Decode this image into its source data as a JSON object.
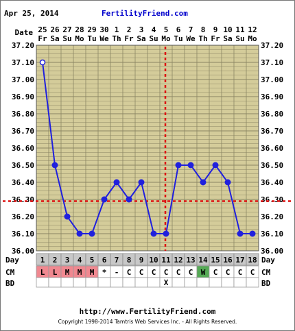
{
  "header": {
    "date": "Apr 25, 2014",
    "site": "FertilityFriend.com"
  },
  "footer": {
    "url": "http://www.FertilityFriend.com",
    "copyright": "Copyright 1998-2014 Tamtris Web Services Inc. - All Rights Reserved."
  },
  "labels": {
    "date_row": "Date",
    "day_row": "Day",
    "cm_row": "CM",
    "bd_row": "BD"
  },
  "colors": {
    "panel": "#d4cc9a",
    "grid": "#8a8462",
    "line": "#2020dd",
    "coverline": "#dd1111",
    "cm_red": "#f08890",
    "cm_green": "#55aa55",
    "row_gray": "#c8c8c8",
    "title_blue": "#0000cc"
  },
  "chart_data": {
    "type": "line",
    "ylim": [
      36.0,
      37.2
    ],
    "yticks": [
      "37.20",
      "37.10",
      "37.00",
      "36.90",
      "36.80",
      "36.70",
      "36.60",
      "36.50",
      "36.40",
      "36.30",
      "36.20",
      "36.10",
      "36.00"
    ],
    "dates": [
      "25",
      "26",
      "27",
      "28",
      "29",
      "30",
      "1",
      "2",
      "3",
      "4",
      "5",
      "6",
      "7",
      "8",
      "9",
      "10",
      "11",
      "12"
    ],
    "weekdays": [
      "Fr",
      "Sa",
      "Su",
      "Mo",
      "Tu",
      "We",
      "Th",
      "Fr",
      "Sa",
      "Su",
      "Mo",
      "Tu",
      "We",
      "Th",
      "Fr",
      "Sa",
      "Su",
      "Mo"
    ],
    "cycle_days": [
      "1",
      "2",
      "3",
      "4",
      "5",
      "6",
      "7",
      "8",
      "9",
      "10",
      "11",
      "12",
      "13",
      "14",
      "15",
      "16",
      "17",
      "18"
    ],
    "temps": [
      37.1,
      36.5,
      36.2,
      36.1,
      36.1,
      36.3,
      36.4,
      36.3,
      36.4,
      36.1,
      36.1,
      36.5,
      36.5,
      36.4,
      36.5,
      36.4,
      36.1,
      36.1
    ],
    "first_point_open": true,
    "coverline": 36.29,
    "ovulation_day_index": 10,
    "cm": [
      "L",
      "L",
      "M",
      "M",
      "M",
      "*",
      "-",
      "C",
      "C",
      "C",
      "C",
      "C",
      "C",
      "W",
      "C",
      "C",
      "C",
      "C"
    ],
    "cm_colors": [
      "red",
      "red",
      "red",
      "red",
      "red",
      "none",
      "none",
      "none",
      "none",
      "none",
      "none",
      "none",
      "none",
      "green",
      "none",
      "none",
      "none",
      "none"
    ],
    "bd": [
      "",
      "",
      "",
      "",
      "",
      "",
      "",
      "",
      "",
      "",
      "X",
      "",
      "",
      "",
      "",
      "",
      "",
      ""
    ]
  }
}
